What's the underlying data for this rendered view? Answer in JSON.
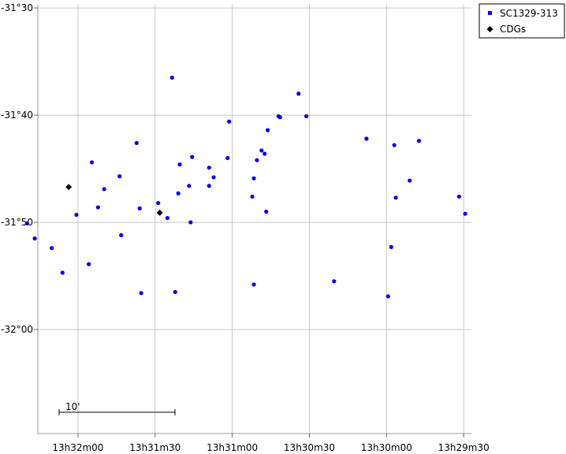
{
  "chart_data": {
    "type": "scatter",
    "xlabel": "",
    "ylabel": "",
    "x_unit": "RA (h m s)",
    "y_unit": "Dec (deg arcmin)",
    "xlim_minutes": [
      32.26,
      29.45
    ],
    "ylim_arcmin": [
      -1929.7,
      -1889.7
    ],
    "x_ticks": [
      {
        "label": "13h32m00",
        "ra_min": 32.0
      },
      {
        "label": "13h31m30",
        "ra_min": 31.5
      },
      {
        "label": "13h31m00",
        "ra_min": 31.0
      },
      {
        "label": "13h30m30",
        "ra_min": 30.5
      },
      {
        "label": "13h30m00",
        "ra_min": 30.0
      },
      {
        "label": "13h29m30",
        "ra_min": 29.5
      }
    ],
    "y_ticks": [
      {
        "label": "-31°30",
        "dec_arcmin": -1890
      },
      {
        "label": "-31°40",
        "dec_arcmin": -1900
      },
      {
        "label": "-31°50",
        "dec_arcmin": -1910
      },
      {
        "label": "-32°00",
        "dec_arcmin": -1920
      }
    ],
    "grid": true,
    "legend_position": "outside-top-right",
    "scale_bar": {
      "label": "10'",
      "length_arcmin": 10
    },
    "series": [
      {
        "name": "SC1329-313",
        "color": "#0000ee",
        "marker": "circle",
        "points": [
          [
            32.33,
            -1910.1
          ],
          [
            32.28,
            -1911.5
          ],
          [
            32.17,
            -1912.4
          ],
          [
            32.1,
            -1914.7
          ],
          [
            32.01,
            -1909.3
          ],
          [
            31.91,
            -1904.4
          ],
          [
            31.93,
            -1913.9
          ],
          [
            31.87,
            -1908.6
          ],
          [
            31.83,
            -1906.9
          ],
          [
            31.73,
            -1905.7
          ],
          [
            31.72,
            -1911.2
          ],
          [
            31.62,
            -1902.6
          ],
          [
            31.6,
            -1908.7
          ],
          [
            31.59,
            -1916.6
          ],
          [
            31.48,
            -1908.2
          ],
          [
            31.42,
            -1909.6
          ],
          [
            31.39,
            -1896.5
          ],
          [
            31.37,
            -1916.5
          ],
          [
            31.34,
            -1904.6
          ],
          [
            31.35,
            -1907.3
          ],
          [
            31.28,
            -1906.6
          ],
          [
            31.27,
            -1910.0
          ],
          [
            31.26,
            -1903.9
          ],
          [
            31.15,
            -1904.9
          ],
          [
            31.15,
            -1906.6
          ],
          [
            31.12,
            -1905.8
          ],
          [
            31.03,
            -1904.0
          ],
          [
            31.02,
            -1900.6
          ],
          [
            30.87,
            -1907.6
          ],
          [
            30.86,
            -1915.8
          ],
          [
            30.86,
            -1905.9
          ],
          [
            30.84,
            -1904.2
          ],
          [
            30.81,
            -1903.3
          ],
          [
            30.79,
            -1903.6
          ],
          [
            30.78,
            -1909.0
          ],
          [
            30.77,
            -1901.4
          ],
          [
            30.7,
            -1900.1
          ],
          [
            30.69,
            -1900.2
          ],
          [
            30.57,
            -1898.0
          ],
          [
            30.52,
            -1900.1
          ],
          [
            30.34,
            -1915.5
          ],
          [
            30.13,
            -1902.2
          ],
          [
            29.99,
            -1916.9
          ],
          [
            29.97,
            -1912.3
          ],
          [
            29.95,
            -1902.8
          ],
          [
            29.94,
            -1907.7
          ],
          [
            29.85,
            -1906.1
          ],
          [
            29.79,
            -1902.4
          ],
          [
            29.53,
            -1907.6
          ],
          [
            29.49,
            -1909.2
          ]
        ]
      },
      {
        "name": "CDGs",
        "color": "#000000",
        "marker": "diamond",
        "points": [
          [
            32.06,
            -1906.7
          ],
          [
            31.47,
            -1909.1
          ]
        ]
      }
    ]
  }
}
